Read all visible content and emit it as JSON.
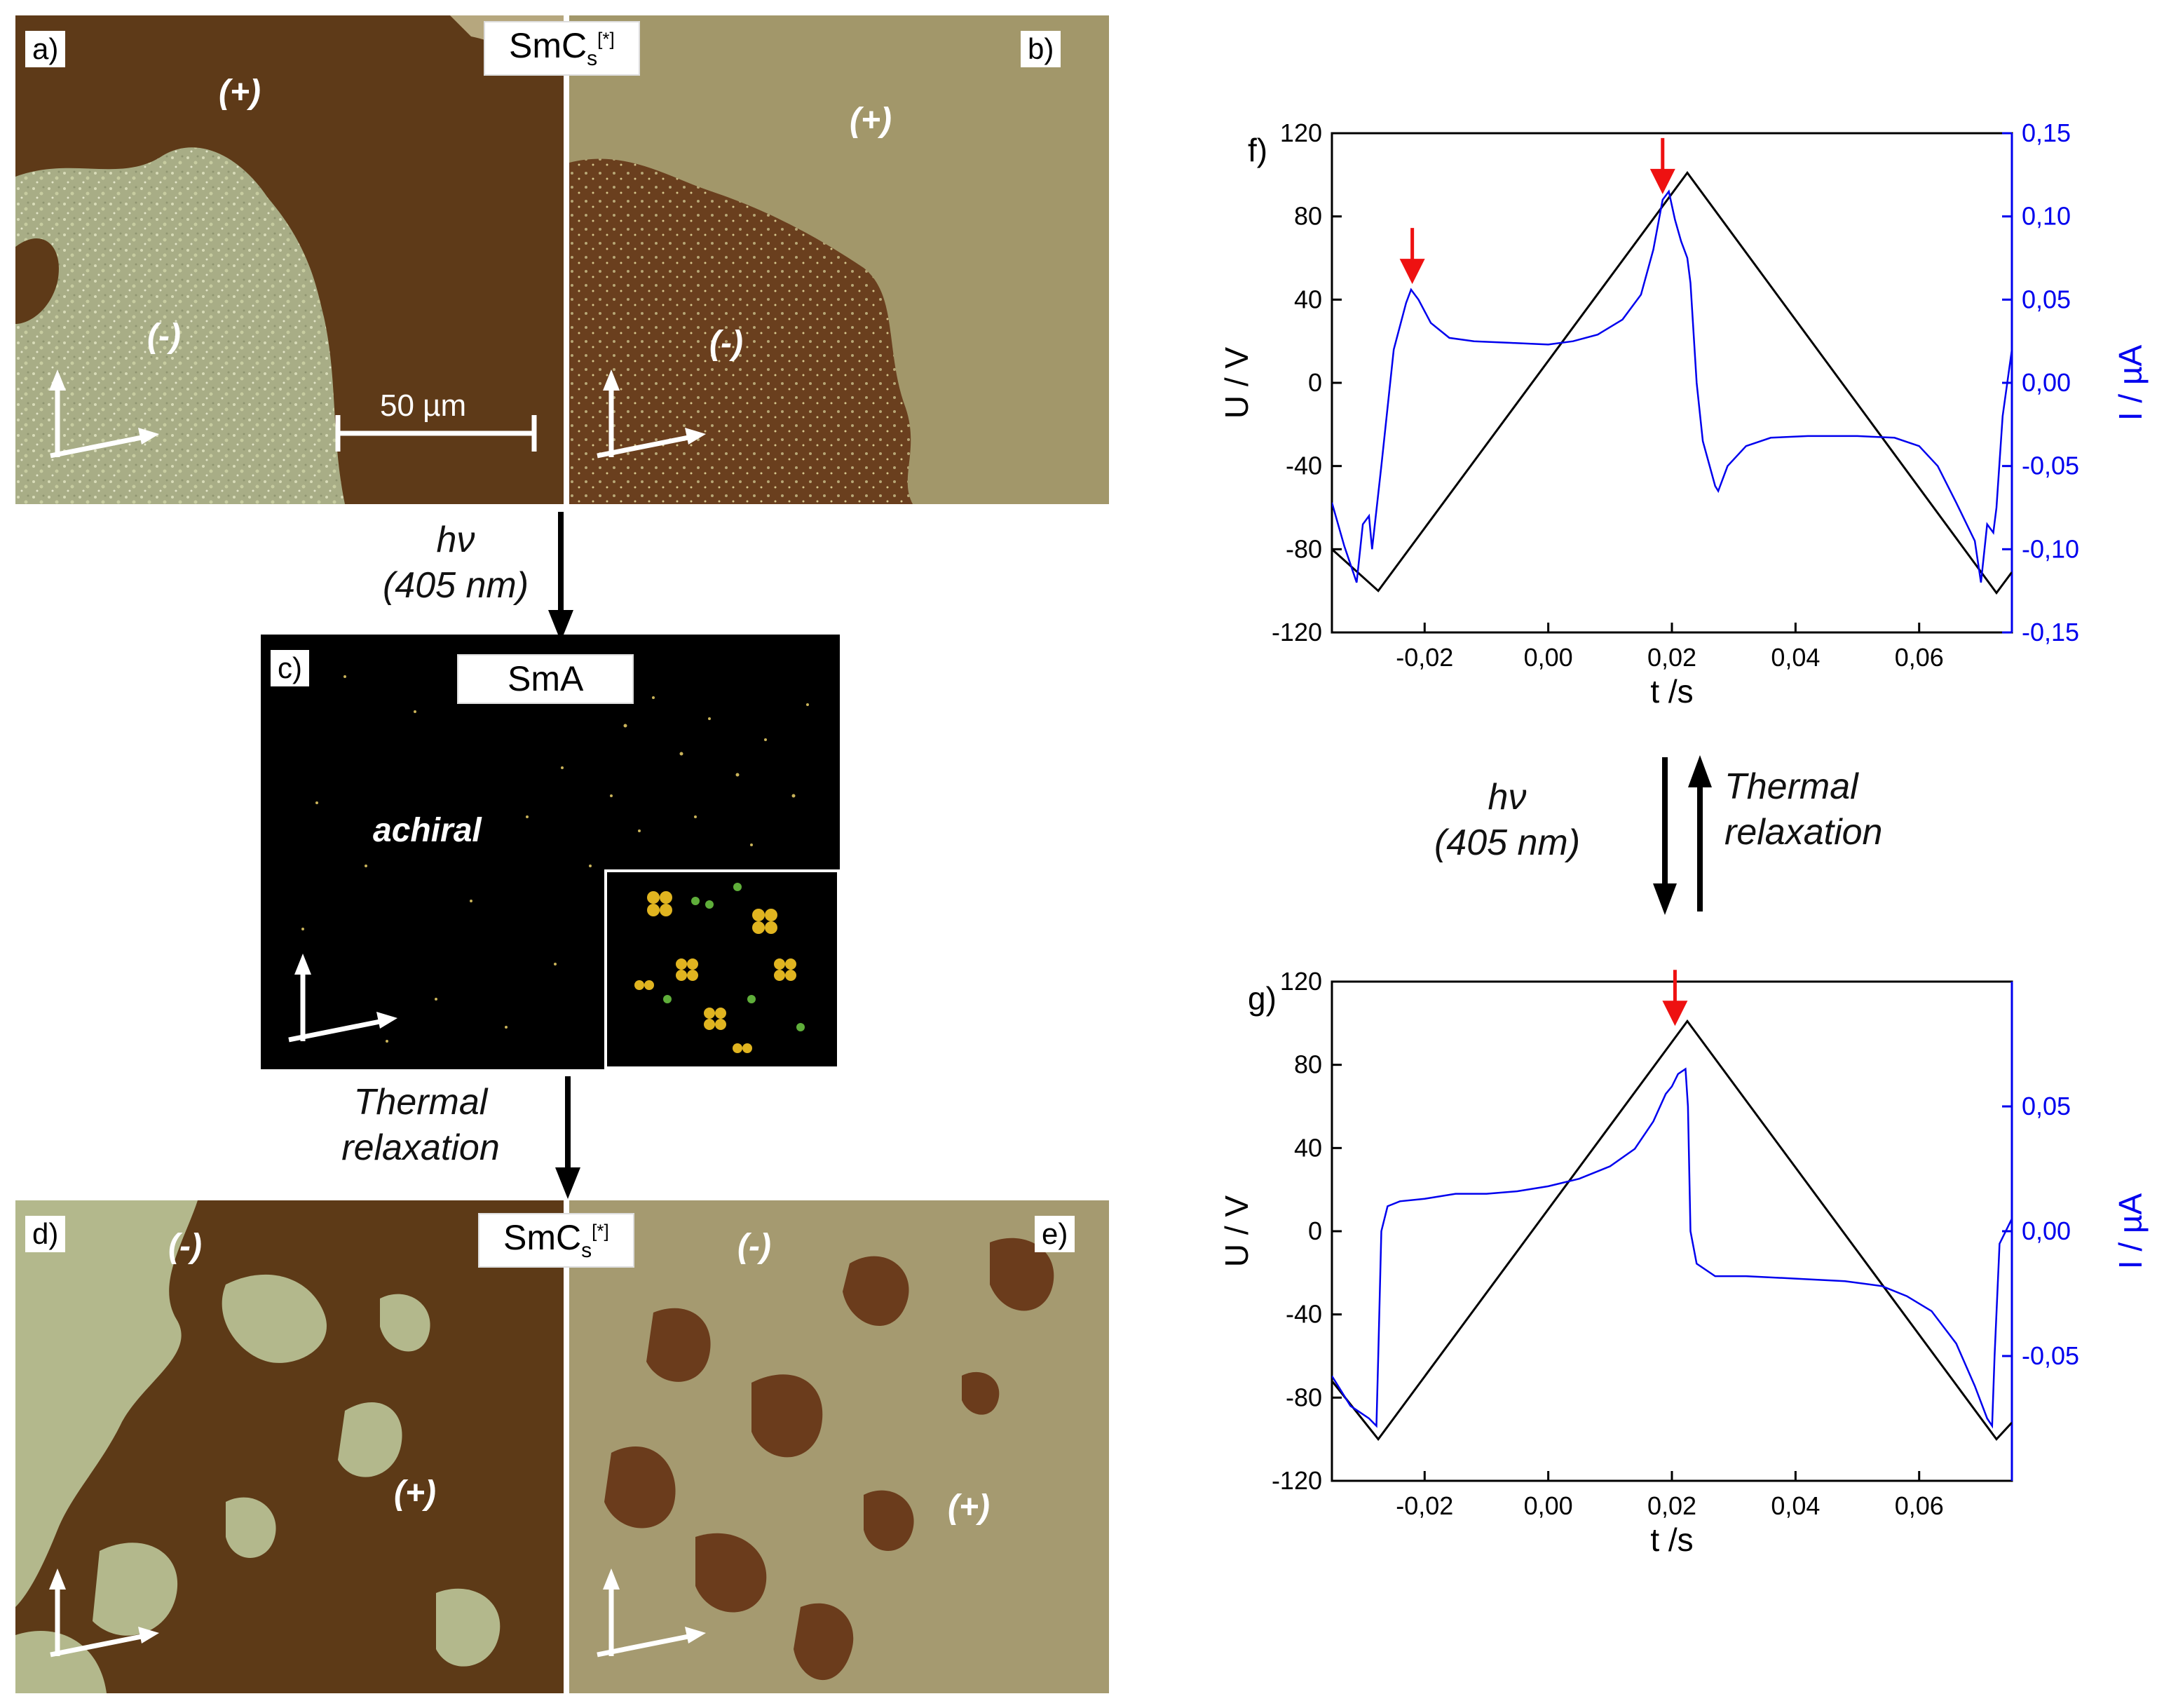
{
  "panels": {
    "a": {
      "label": "a)",
      "plus": "(+)",
      "minus": "(-)",
      "scale": "50 µm"
    },
    "b": {
      "label": "b)",
      "plus": "(+)",
      "minus": "(-)"
    },
    "c": {
      "label": "c)",
      "phase": "SmA",
      "text": "achiral"
    },
    "d": {
      "label": "d)",
      "plus": "(+)",
      "minus": "(-)"
    },
    "e": {
      "label": "e)",
      "plus": "(+)",
      "minus": "(-)"
    }
  },
  "phase_top": {
    "main": "SmC",
    "sub": "s",
    "sup": "[*]"
  },
  "phase_bottom": {
    "main": "SmC",
    "sub": "s",
    "sup": "[*]"
  },
  "transitions": {
    "left_top": {
      "line1": "hν",
      "line2": "(405 nm)"
    },
    "left_bottom": {
      "line1": "Thermal",
      "line2": "relaxation"
    },
    "right_left": {
      "line1": "hν",
      "line2": "(405 nm)"
    },
    "right_right": {
      "line1": "Thermal",
      "line2": "relaxation"
    }
  },
  "colors": {
    "voltage": "#000000",
    "current": "#0000ee",
    "arrow": "#ee1111"
  },
  "chart_data": [
    {
      "panel": "f)",
      "type": "line",
      "xlabel": "t /s",
      "ylabel_left": "U / V",
      "ylabel_right": "I / µA",
      "xlim": [
        -0.035,
        0.075
      ],
      "ylim_left": [
        -120,
        120
      ],
      "ylim_right": [
        -0.15,
        0.15
      ],
      "x_ticks": [
        "-0,02",
        "0,00",
        "0,02",
        "0,04",
        "0,06"
      ],
      "x_tick_values": [
        -0.02,
        0.0,
        0.02,
        0.04,
        0.06
      ],
      "y_left_ticks": [
        "-120",
        "-80",
        "-40",
        "0",
        "40",
        "80",
        "120"
      ],
      "y_left_tick_values": [
        -120,
        -80,
        -40,
        0,
        40,
        80,
        120
      ],
      "y_right_ticks": [
        "-0,15",
        "-0,10",
        "-0,05",
        "0,00",
        "0,05",
        "0,10",
        "0,15"
      ],
      "y_right_tick_values": [
        -0.15,
        -0.1,
        -0.05,
        0.0,
        0.05,
        0.1,
        0.15
      ],
      "series": [
        {
          "axis": "left",
          "x": [
            -0.035,
            -0.0275,
            0.0225,
            0.0725,
            0.075
          ],
          "y": [
            -80,
            -100,
            101,
            -101,
            -91
          ]
        },
        {
          "axis": "right",
          "x": [
            -0.035,
            -0.033,
            -0.031,
            -0.03,
            -0.029,
            -0.0285,
            -0.027,
            -0.025,
            -0.023,
            -0.0222,
            -0.021,
            -0.019,
            -0.016,
            -0.012,
            -0.006,
            0.0,
            0.004,
            0.008,
            0.012,
            0.015,
            0.017,
            0.0185,
            0.0195,
            0.0205,
            0.0215,
            0.022,
            0.0225,
            0.023,
            0.024,
            0.025,
            0.027,
            0.0275,
            0.029,
            0.032,
            0.036,
            0.042,
            0.05,
            0.056,
            0.06,
            0.063,
            0.066,
            0.069,
            0.07,
            0.071,
            0.072,
            0.0725,
            0.0735,
            0.075
          ],
          "y": [
            -0.072,
            -0.098,
            -0.12,
            -0.085,
            -0.08,
            -0.1,
            -0.05,
            0.02,
            0.048,
            0.056,
            0.05,
            0.036,
            0.027,
            0.025,
            0.024,
            0.023,
            0.025,
            0.029,
            0.038,
            0.053,
            0.08,
            0.11,
            0.115,
            0.098,
            0.085,
            0.08,
            0.075,
            0.06,
            0.0,
            -0.035,
            -0.062,
            -0.065,
            -0.05,
            -0.038,
            -0.033,
            -0.032,
            -0.032,
            -0.033,
            -0.038,
            -0.05,
            -0.072,
            -0.095,
            -0.12,
            -0.085,
            -0.09,
            -0.075,
            -0.02,
            0.02
          ]
        }
      ],
      "markers": [
        {
          "x": -0.022,
          "axis": "right",
          "y": 0.056
        },
        {
          "x": 0.0185,
          "axis": "right",
          "y": 0.11
        }
      ]
    },
    {
      "panel": "g)",
      "type": "line",
      "xlabel": "t /s",
      "ylabel_left": "U / V",
      "ylabel_right": "I / µA",
      "xlim": [
        -0.035,
        0.075
      ],
      "ylim_left": [
        -120,
        120
      ],
      "ylim_right": [
        -0.1,
        0.1
      ],
      "x_ticks": [
        "-0,02",
        "0,00",
        "0,02",
        "0,04",
        "0,06"
      ],
      "x_tick_values": [
        -0.02,
        0.0,
        0.02,
        0.04,
        0.06
      ],
      "y_left_ticks": [
        "-120",
        "-80",
        "-40",
        "0",
        "40",
        "80",
        "120"
      ],
      "y_left_tick_values": [
        -120,
        -80,
        -40,
        0,
        40,
        80,
        120
      ],
      "y_right_ticks": [
        "-0,05",
        "0,00",
        "0,05"
      ],
      "y_right_tick_values": [
        -0.05,
        0.0,
        0.05
      ],
      "series": [
        {
          "axis": "left",
          "x": [
            -0.035,
            -0.0275,
            0.0225,
            0.0725,
            0.075
          ],
          "y": [
            -72,
            -100,
            101,
            -100,
            -92
          ]
        },
        {
          "axis": "right",
          "x": [
            -0.035,
            -0.032,
            -0.029,
            -0.0278,
            -0.0275,
            -0.027,
            -0.026,
            -0.024,
            -0.02,
            -0.015,
            -0.01,
            -0.005,
            0.0,
            0.005,
            0.01,
            0.014,
            0.017,
            0.019,
            0.02,
            0.021,
            0.0222,
            0.0226,
            0.023,
            0.024,
            0.027,
            0.032,
            0.04,
            0.048,
            0.054,
            0.058,
            0.062,
            0.066,
            0.069,
            0.071,
            0.0718,
            0.0722,
            0.073,
            0.075
          ],
          "y": [
            -0.058,
            -0.07,
            -0.075,
            -0.078,
            -0.05,
            0.0,
            0.01,
            0.012,
            0.013,
            0.015,
            0.015,
            0.016,
            0.018,
            0.021,
            0.026,
            0.033,
            0.044,
            0.055,
            0.058,
            0.063,
            0.065,
            0.05,
            0.0,
            -0.013,
            -0.018,
            -0.018,
            -0.019,
            -0.02,
            -0.022,
            -0.026,
            -0.032,
            -0.045,
            -0.062,
            -0.075,
            -0.078,
            -0.05,
            -0.005,
            0.005
          ]
        }
      ],
      "markers": [
        {
          "x": 0.0205,
          "axis": "left",
          "y": 96
        }
      ]
    }
  ]
}
